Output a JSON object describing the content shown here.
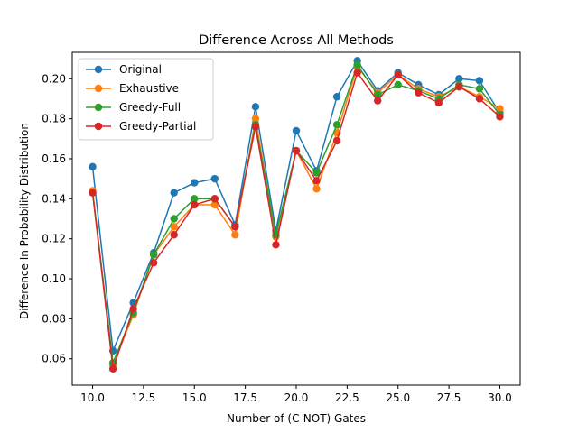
{
  "chart_data": {
    "type": "line",
    "title": "Difference Across All Methods",
    "xlabel": "Number of (C-NOT) Gates",
    "ylabel": "Difference In Probability Distribution",
    "xlim": [
      9.0,
      31.0
    ],
    "ylim": [
      0.0468,
      0.2132
    ],
    "xticks": [
      10.0,
      12.5,
      15.0,
      17.5,
      20.0,
      22.5,
      25.0,
      27.5,
      30.0
    ],
    "xtick_labels": [
      "10.0",
      "12.5",
      "15.0",
      "17.5",
      "20.0",
      "22.5",
      "25.0",
      "27.5",
      "30.0"
    ],
    "yticks": [
      0.06,
      0.08,
      0.1,
      0.12,
      0.14,
      0.16,
      0.18,
      0.2
    ],
    "ytick_labels": [
      "0.06",
      "0.08",
      "0.10",
      "0.12",
      "0.14",
      "0.16",
      "0.18",
      "0.20"
    ],
    "grid": false,
    "legend_position": "top-left",
    "x": [
      10,
      11,
      12,
      13,
      14,
      15,
      16,
      17,
      18,
      19,
      20,
      21,
      22,
      23,
      24,
      25,
      26,
      27,
      28,
      29,
      30
    ],
    "series": [
      {
        "name": "Original",
        "color": "#1f77b4",
        "values": [
          0.156,
          0.064,
          0.088,
          0.113,
          0.143,
          0.148,
          0.15,
          0.127,
          0.186,
          0.124,
          0.174,
          0.154,
          0.191,
          0.209,
          0.194,
          0.203,
          0.197,
          0.192,
          0.2,
          0.199,
          0.183
        ]
      },
      {
        "name": "Exhaustive",
        "color": "#ff7f0e",
        "values": [
          0.144,
          0.057,
          0.082,
          0.112,
          0.126,
          0.137,
          0.137,
          0.122,
          0.18,
          0.121,
          0.164,
          0.145,
          0.173,
          0.206,
          0.193,
          0.202,
          0.195,
          0.191,
          0.196,
          0.191,
          0.185
        ]
      },
      {
        "name": "Greedy-Full",
        "color": "#2ca02c",
        "values": [
          0.143,
          0.058,
          0.083,
          0.112,
          0.13,
          0.14,
          0.14,
          0.126,
          0.177,
          0.122,
          0.164,
          0.153,
          0.177,
          0.207,
          0.192,
          0.197,
          0.194,
          0.19,
          0.197,
          0.195,
          0.182
        ]
      },
      {
        "name": "Greedy-Partial",
        "color": "#d62728",
        "values": [
          0.143,
          0.055,
          0.085,
          0.108,
          0.122,
          0.137,
          0.14,
          0.126,
          0.176,
          0.117,
          0.164,
          0.149,
          0.169,
          0.203,
          0.189,
          0.202,
          0.193,
          0.188,
          0.196,
          0.19,
          0.181
        ]
      }
    ]
  }
}
